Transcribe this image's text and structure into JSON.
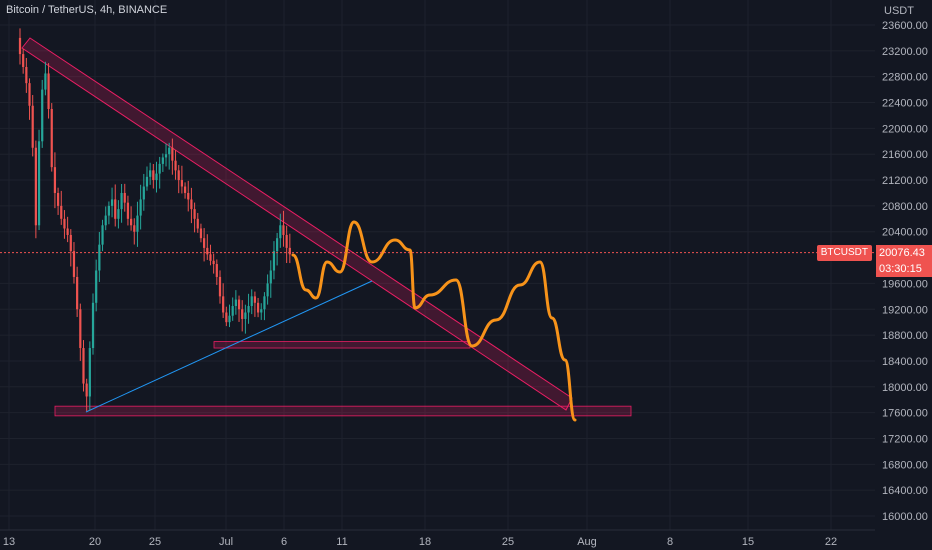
{
  "header": {
    "title": "Bitcoin / TetherUS, 4h, BINANCE"
  },
  "price_axis": {
    "unit": "USDT",
    "ticks": [
      "23600.00",
      "23200.00",
      "22800.00",
      "22400.00",
      "22000.00",
      "21600.00",
      "21200.00",
      "20800.00",
      "20400.00",
      "19600.00",
      "19200.00",
      "18800.00",
      "18400.00",
      "18000.00",
      "17600.00",
      "17200.00",
      "16800.00",
      "16400.00",
      "16000.00"
    ]
  },
  "time_axis": {
    "ticks": [
      "13",
      "20",
      "25",
      "Jul",
      "6",
      "11",
      "18",
      "25",
      "Aug",
      "8",
      "15",
      "22"
    ]
  },
  "current_price": {
    "symbol": "BTCUSDT",
    "price": "20076.43",
    "countdown": "03:30:15"
  },
  "colors": {
    "background": "#131722",
    "up": "#26a69a",
    "down": "#ef5350",
    "projection": "#f7931a",
    "channel": "#e91e63",
    "trendline": "#2196f3"
  },
  "chart_data": {
    "type": "candlestick",
    "title": "Bitcoin / TetherUS, 4h, BINANCE",
    "y_unit": "USDT",
    "ylim": [
      15950,
      23750
    ],
    "x_tick_labels": [
      "13",
      "20",
      "25",
      "Jul",
      "6",
      "11",
      "18",
      "25",
      "Aug",
      "8",
      "15",
      "22"
    ],
    "current_price": 20076.43,
    "price_path": [
      23400,
      23150,
      22950,
      22700,
      22350,
      21700,
      20500,
      21800,
      22600,
      22850,
      22300,
      21400,
      21000,
      20800,
      20600,
      20450,
      20350,
      20100,
      19700,
      19200,
      18600,
      18050,
      17850,
      18600,
      19300,
      19800,
      20200,
      20500,
      20650,
      20800,
      20900,
      20600,
      20750,
      21000,
      20850,
      20600,
      20500,
      20400,
      20650,
      20900,
      21100,
      21250,
      21350,
      21200,
      21300,
      21450,
      21550,
      21600,
      21700,
      21500,
      21350,
      21200,
      21100,
      21000,
      20900,
      20750,
      20600,
      20450,
      20300,
      20150,
      20050,
      19950,
      19900,
      19700,
      19400,
      19150,
      19000,
      19100,
      19250,
      19350,
      19200,
      19050,
      19150,
      19250,
      19400,
      19300,
      19150,
      19200,
      19400,
      19600,
      19800,
      20100,
      20300,
      20500,
      20350,
      20150,
      20050
    ],
    "annotations": {
      "descending_channel": {
        "from": {
          "x": "13",
          "y": 23300
        },
        "to": {
          "x": "29",
          "y": 17600
        }
      },
      "ascending_trendline": {
        "from": {
          "x": "19",
          "y": 17600
        },
        "to": {
          "x": "13",
          "y": 19700
        }
      },
      "support_zones": [
        {
          "low": 18600,
          "high": 18700
        },
        {
          "low": 17550,
          "high": 17700
        }
      ],
      "projection_path": [
        {
          "x": "6.5",
          "y": 19800
        },
        {
          "x": "8",
          "y": 19550
        },
        {
          "x": "9",
          "y": 19900
        },
        {
          "x": "11",
          "y": 20500
        },
        {
          "x": "12.5",
          "y": 20000
        },
        {
          "x": "15",
          "y": 20300
        },
        {
          "x": "16",
          "y": 19400
        },
        {
          "x": "18",
          "y": 19700
        },
        {
          "x": "20",
          "y": 18900
        },
        {
          "x": "23",
          "y": 19000
        },
        {
          "x": "27",
          "y": 19900
        },
        {
          "x": "29",
          "y": 18500
        },
        {
          "x": "30",
          "y": 17550
        }
      ]
    }
  }
}
